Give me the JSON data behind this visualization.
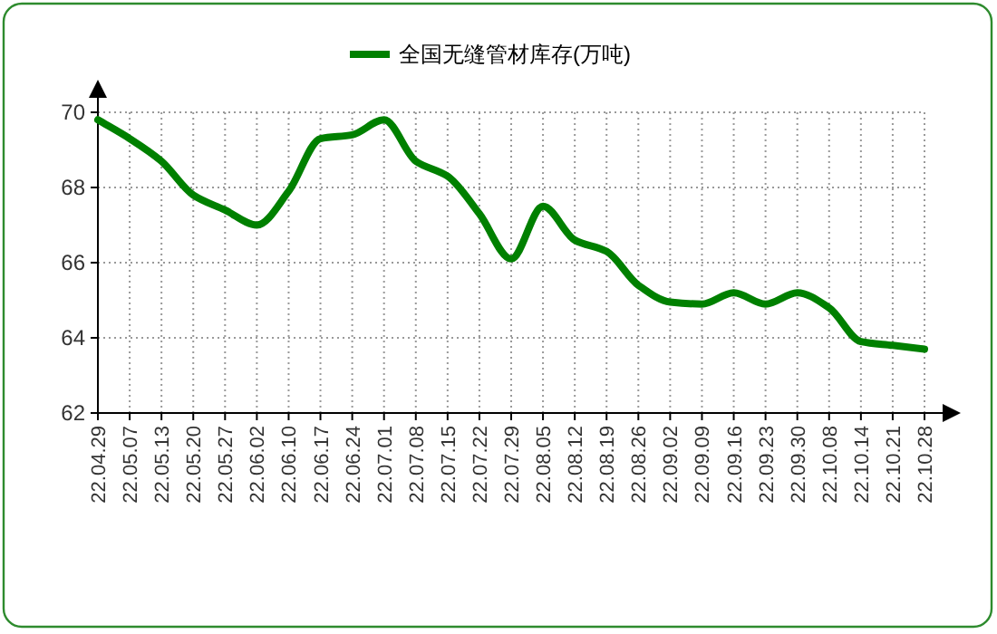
{
  "chart_data": {
    "type": "line",
    "categories": [
      "22.04.29",
      "22.05.07",
      "22.05.13",
      "22.05.20",
      "22.05.27",
      "22.06.02",
      "22.06.10",
      "22.06.17",
      "22.06.24",
      "22.07.01",
      "22.07.08",
      "22.07.15",
      "22.07.22",
      "22.07.29",
      "22.08.05",
      "22.08.12",
      "22.08.19",
      "22.08.26",
      "22.09.02",
      "22.09.09",
      "22.09.16",
      "22.09.23",
      "22.09.30",
      "22.10.08",
      "22.10.14",
      "22.10.21",
      "22.10.28"
    ],
    "series": [
      {
        "name": "全国无缝管材库存(万吨)",
        "color": "#008000",
        "values": [
          69.8,
          69.3,
          68.7,
          67.8,
          67.4,
          67.0,
          67.9,
          69.3,
          69.4,
          69.8,
          68.7,
          68.3,
          67.3,
          66.1,
          67.5,
          66.6,
          66.3,
          65.4,
          64.95,
          64.9,
          65.2,
          64.9,
          65.2,
          64.8,
          63.9,
          63.8,
          63.7
        ]
      }
    ],
    "ylim": [
      62,
      70
    ],
    "yticks": [
      62,
      64,
      66,
      68,
      70
    ],
    "grid": true,
    "legend": "top",
    "marker": "none",
    "line_style": "solid"
  }
}
